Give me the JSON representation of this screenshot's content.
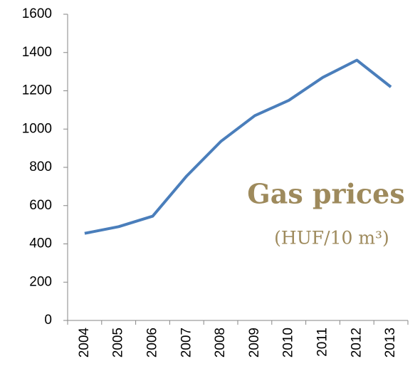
{
  "chart_data": {
    "type": "line",
    "title": "Gas prices",
    "subtitle": "(HUF/10 m³)",
    "categories": [
      "2004",
      "2005",
      "2006",
      "2007",
      "2008",
      "2009",
      "2010",
      "2011",
      "2012",
      "2013"
    ],
    "values": [
      455,
      490,
      545,
      755,
      935,
      1070,
      1150,
      1270,
      1360,
      1220
    ],
    "color": "#4a7ebb",
    "ylim": [
      0,
      1600
    ],
    "yticks": [
      0,
      200,
      400,
      600,
      800,
      1000,
      1200,
      1400,
      1600
    ]
  }
}
